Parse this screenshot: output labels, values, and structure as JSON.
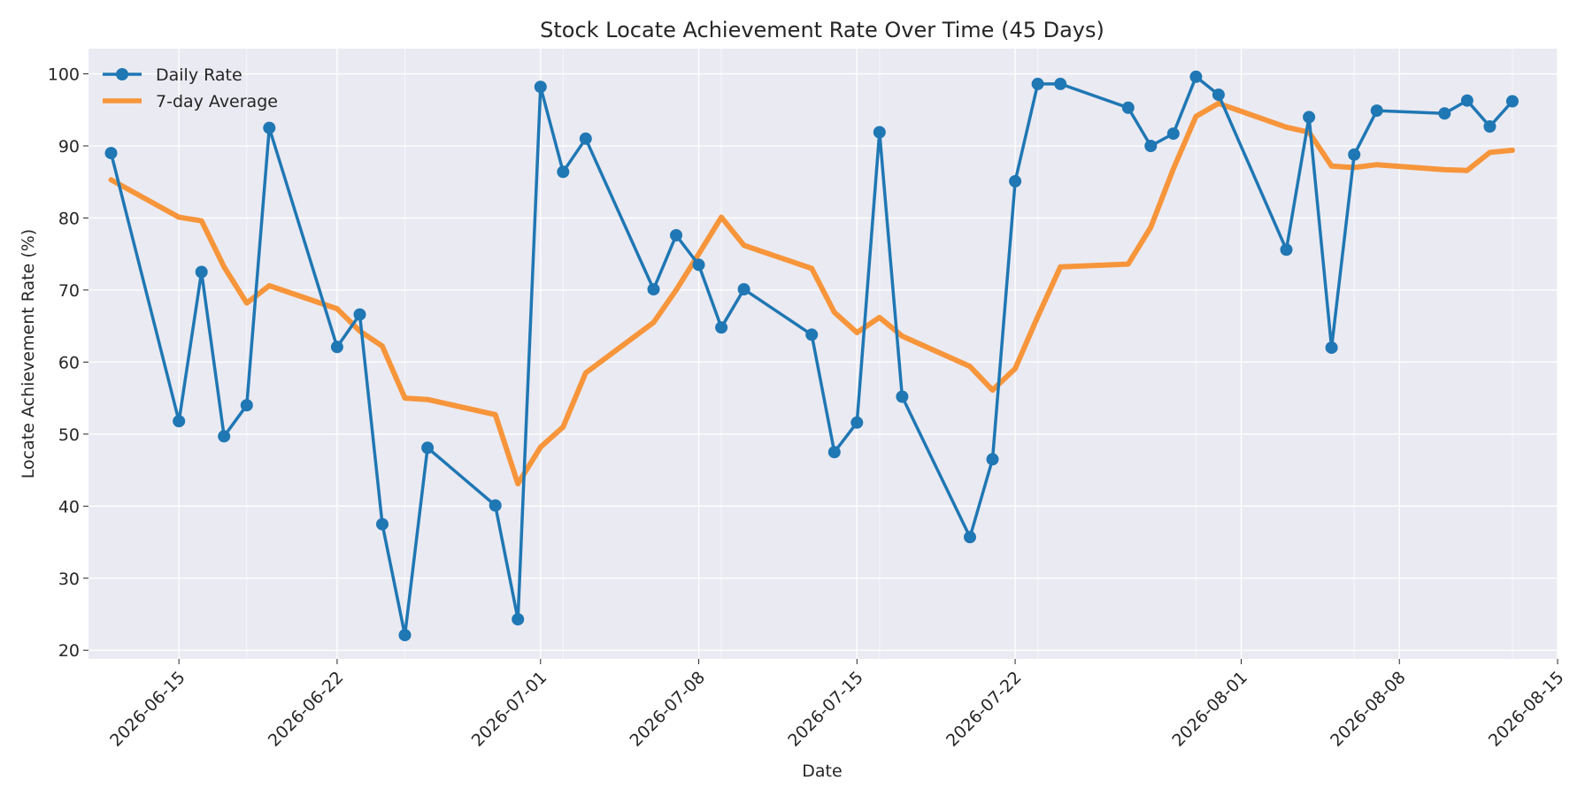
{
  "chart_data": {
    "type": "line",
    "title": "Stock Locate Achievement Rate Over Time (45 Days)",
    "xlabel": "Date",
    "ylabel": "Locate Achievement Rate (%)",
    "ylim": [
      18.8,
      103.5
    ],
    "xlim": [
      "2026-06-11",
      "2026-08-15"
    ],
    "x_ticks": [
      "2026-06-15",
      "2026-06-22",
      "2026-07-01",
      "2026-07-08",
      "2026-07-15",
      "2026-07-22",
      "2026-08-01",
      "2026-08-08",
      "2026-08-15"
    ],
    "y_ticks": [
      20,
      30,
      40,
      50,
      60,
      70,
      80,
      90,
      100
    ],
    "grid": true,
    "legend": "top-left",
    "colors": {
      "plot_bg": "#eaeaf2",
      "grid": "#ffffff",
      "daily": "#1f77b4",
      "avg": "#f7953b"
    },
    "x": [
      "2026-06-12",
      "2026-06-15",
      "2026-06-16",
      "2026-06-17",
      "2026-06-18",
      "2026-06-19",
      "2026-06-22",
      "2026-06-23",
      "2026-06-24",
      "2026-06-25",
      "2026-06-26",
      "2026-06-29",
      "2026-06-30",
      "2026-07-01",
      "2026-07-02",
      "2026-07-03",
      "2026-07-06",
      "2026-07-07",
      "2026-07-08",
      "2026-07-09",
      "2026-07-10",
      "2026-07-13",
      "2026-07-14",
      "2026-07-15",
      "2026-07-16",
      "2026-07-17",
      "2026-07-20",
      "2026-07-21",
      "2026-07-22",
      "2026-07-23",
      "2026-07-24",
      "2026-07-27",
      "2026-07-28",
      "2026-07-29",
      "2026-07-30",
      "2026-07-31",
      "2026-08-03",
      "2026-08-04",
      "2026-08-05",
      "2026-08-06",
      "2026-08-07",
      "2026-08-10",
      "2026-08-11",
      "2026-08-12",
      "2026-08-13"
    ],
    "series": [
      {
        "name": "Daily Rate",
        "values": [
          89.0,
          51.8,
          72.5,
          49.7,
          54.0,
          92.5,
          62.1,
          66.6,
          37.5,
          22.1,
          48.1,
          40.1,
          24.3,
          98.2,
          86.4,
          91.0,
          70.1,
          77.6,
          73.5,
          64.8,
          70.1,
          63.8,
          47.5,
          51.6,
          91.9,
          55.2,
          35.7,
          46.5,
          85.1,
          98.6,
          98.6,
          95.3,
          90.0,
          91.7,
          99.6,
          97.1,
          75.6,
          94.0,
          62.0,
          88.8,
          94.9,
          94.5,
          96.3,
          92.7,
          96.2
        ]
      },
      {
        "name": "7-day Average",
        "values": [
          85.3,
          80.1,
          79.6,
          73.2,
          68.2,
          70.6,
          67.4,
          64.3,
          62.2,
          55.0,
          54.8,
          52.7,
          43.1,
          48.2,
          51.0,
          58.5,
          65.5,
          70.0,
          75.0,
          80.1,
          76.2,
          73.0,
          66.9,
          64.1,
          66.2,
          63.6,
          59.4,
          56.1,
          59.1,
          66.3,
          73.2,
          73.6,
          78.7,
          86.8,
          94.1,
          95.9,
          92.6,
          91.9,
          87.2,
          87.0,
          87.4,
          86.7,
          86.6,
          89.1,
          89.4
        ]
      }
    ]
  }
}
